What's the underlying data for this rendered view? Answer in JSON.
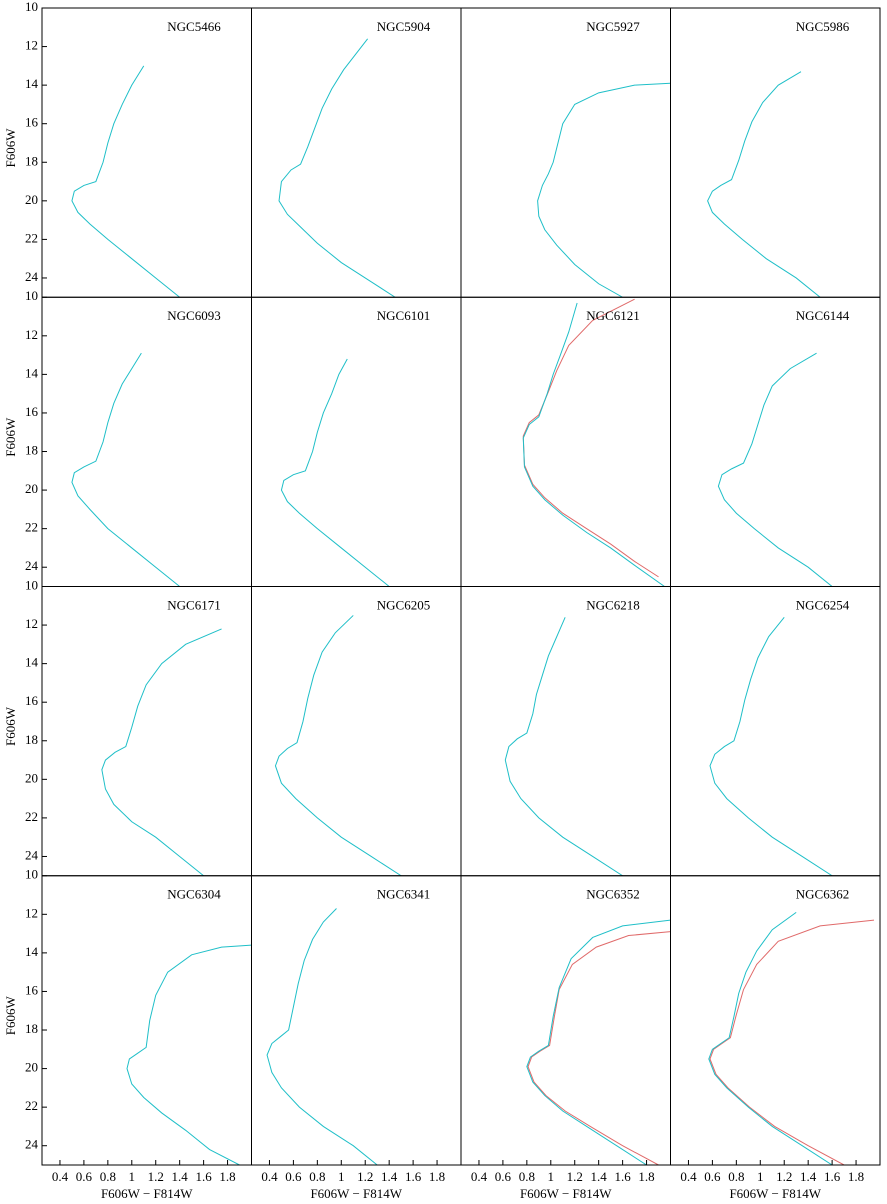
{
  "chart_data": [
    {
      "type": "line",
      "title": "NGC5466",
      "ylabel": "F606W",
      "xlim": [
        0.25,
        2.0
      ],
      "ylim": [
        25,
        10
      ],
      "yticks": [
        10,
        12,
        14,
        16,
        18,
        20,
        22,
        24
      ],
      "series": [
        {
          "color": "#1fbfc8",
          "x": [
            1.4,
            1.2,
            1.0,
            0.8,
            0.65,
            0.55,
            0.5,
            0.52,
            0.6,
            0.7,
            0.76,
            0.8,
            0.85,
            0.92,
            1.0,
            1.1
          ],
          "values": [
            25,
            24,
            23,
            22,
            21.2,
            20.6,
            20,
            19.5,
            19.2,
            19.0,
            18,
            17,
            16,
            15,
            14,
            13
          ]
        }
      ]
    },
    {
      "type": "line",
      "title": "NGC5904",
      "xlim": [
        0.25,
        2.0
      ],
      "ylim": [
        25,
        10
      ],
      "series": [
        {
          "color": "#1fbfc8",
          "x": [
            1.45,
            1.25,
            1.0,
            0.8,
            0.65,
            0.55,
            0.48,
            0.5,
            0.58,
            0.66,
            0.72,
            0.78,
            0.84,
            0.92,
            1.02,
            1.22
          ],
          "values": [
            25,
            24.2,
            23.2,
            22.2,
            21.3,
            20.7,
            20.0,
            19.0,
            18.4,
            18.1,
            17.2,
            16.2,
            15.2,
            14.2,
            13.2,
            11.6
          ]
        }
      ]
    },
    {
      "type": "line",
      "title": "NGC5927",
      "xlim": [
        0.25,
        2.0
      ],
      "ylim": [
        25,
        10
      ],
      "series": [
        {
          "color": "#1fbfc8",
          "x": [
            1.6,
            1.4,
            1.2,
            1.05,
            0.95,
            0.9,
            0.89,
            0.93,
            0.98,
            1.02,
            1.06,
            1.1,
            1.2,
            1.4,
            1.7,
            2.0
          ],
          "values": [
            25,
            24.3,
            23.3,
            22.3,
            21.5,
            20.8,
            20.0,
            19.2,
            18.6,
            18.0,
            17.0,
            16.0,
            15.0,
            14.4,
            14.0,
            13.9
          ]
        }
      ]
    },
    {
      "type": "line",
      "title": "NGC5986",
      "xlim": [
        0.25,
        2.0
      ],
      "ylim": [
        25,
        10
      ],
      "series": [
        {
          "color": "#1fbfc8",
          "x": [
            1.5,
            1.3,
            1.05,
            0.85,
            0.7,
            0.6,
            0.56,
            0.6,
            0.67,
            0.76,
            0.82,
            0.87,
            0.93,
            1.02,
            1.15,
            1.34
          ],
          "values": [
            25,
            24,
            23,
            22,
            21.2,
            20.6,
            20,
            19.5,
            19.2,
            18.9,
            17.9,
            16.9,
            15.9,
            14.9,
            14,
            13.3
          ]
        }
      ]
    },
    {
      "type": "line",
      "title": "NGC6093",
      "ylabel": "F606W",
      "xlim": [
        0.25,
        2.0
      ],
      "ylim": [
        25,
        10
      ],
      "yticks": [
        10,
        12,
        14,
        16,
        18,
        20,
        22,
        24
      ],
      "series": [
        {
          "color": "#1fbfc8",
          "x": [
            1.4,
            1.2,
            1.0,
            0.8,
            0.65,
            0.55,
            0.5,
            0.52,
            0.6,
            0.7,
            0.76,
            0.8,
            0.85,
            0.92,
            1.0,
            1.08
          ],
          "values": [
            25,
            24,
            23,
            22,
            21,
            20.3,
            19.6,
            19.1,
            18.8,
            18.5,
            17.5,
            16.5,
            15.5,
            14.5,
            13.7,
            12.9
          ]
        }
      ]
    },
    {
      "type": "line",
      "title": "NGC6101",
      "xlim": [
        0.25,
        2.0
      ],
      "ylim": [
        25,
        10
      ],
      "series": [
        {
          "color": "#1fbfc8",
          "x": [
            1.4,
            1.2,
            1.0,
            0.8,
            0.65,
            0.55,
            0.5,
            0.52,
            0.6,
            0.7,
            0.76,
            0.8,
            0.85,
            0.92,
            0.98,
            1.05
          ],
          "values": [
            25,
            24,
            23,
            22,
            21.2,
            20.6,
            20,
            19.5,
            19.2,
            19.0,
            18,
            17,
            16,
            15,
            14,
            13.2
          ]
        }
      ]
    },
    {
      "type": "line",
      "title": "NGC6121",
      "xlim": [
        0.25,
        2.0
      ],
      "ylim": [
        25,
        10
      ],
      "series": [
        {
          "color": "#e06a6a",
          "x": [
            1.9,
            1.7,
            1.5,
            1.3,
            1.1,
            0.95,
            0.85,
            0.78,
            0.77,
            0.82,
            0.9,
            0.98,
            1.05,
            1.15,
            1.35,
            1.7
          ],
          "values": [
            24.5,
            23.7,
            22.8,
            22.0,
            21.2,
            20.4,
            19.7,
            18.7,
            17.2,
            16.5,
            16.1,
            14.9,
            13.8,
            12.5,
            11.2,
            10.1
          ]
        },
        {
          "color": "#1fbfc8",
          "x": [
            1.95,
            1.7,
            1.5,
            1.3,
            1.1,
            0.95,
            0.85,
            0.78,
            0.77,
            0.82,
            0.9,
            0.97,
            1.02,
            1.08,
            1.15,
            1.22
          ],
          "values": [
            25,
            23.9,
            23,
            22.2,
            21.3,
            20.5,
            19.8,
            18.8,
            17.3,
            16.6,
            16.2,
            15,
            14,
            13,
            11.8,
            10.3
          ]
        }
      ]
    },
    {
      "type": "line",
      "title": "NGC6144",
      "xlim": [
        0.25,
        2.0
      ],
      "ylim": [
        25,
        10
      ],
      "series": [
        {
          "color": "#1fbfc8",
          "x": [
            1.6,
            1.4,
            1.15,
            0.95,
            0.8,
            0.7,
            0.65,
            0.68,
            0.76,
            0.86,
            0.93,
            0.98,
            1.03,
            1.1,
            1.25,
            1.47
          ],
          "values": [
            25,
            24,
            23,
            22,
            21.2,
            20.5,
            19.8,
            19.2,
            18.9,
            18.6,
            17.6,
            16.6,
            15.6,
            14.6,
            13.7,
            12.9
          ]
        }
      ]
    },
    {
      "type": "line",
      "title": "NGC6171",
      "ylabel": "F606W",
      "xlim": [
        0.25,
        2.0
      ],
      "ylim": [
        25,
        10
      ],
      "yticks": [
        10,
        12,
        14,
        16,
        18,
        20,
        22,
        24
      ],
      "series": [
        {
          "color": "#1fbfc8",
          "x": [
            1.6,
            1.4,
            1.2,
            1.0,
            0.85,
            0.78,
            0.75,
            0.78,
            0.86,
            0.95,
            1.0,
            1.05,
            1.12,
            1.25,
            1.45,
            1.75
          ],
          "values": [
            25,
            24,
            23,
            22.2,
            21.3,
            20.5,
            19.5,
            19.0,
            18.6,
            18.3,
            17.3,
            16.2,
            15.1,
            14,
            13,
            12.2
          ]
        }
      ]
    },
    {
      "type": "line",
      "title": "NGC6205",
      "xlim": [
        0.25,
        2.0
      ],
      "ylim": [
        25,
        10
      ],
      "series": [
        {
          "color": "#1fbfc8",
          "x": [
            1.5,
            1.25,
            1.0,
            0.8,
            0.62,
            0.5,
            0.45,
            0.48,
            0.55,
            0.63,
            0.68,
            0.72,
            0.77,
            0.84,
            0.95,
            1.1
          ],
          "values": [
            25,
            24,
            23,
            22,
            21,
            20.2,
            19.3,
            18.8,
            18.4,
            18.1,
            17,
            15.8,
            14.6,
            13.4,
            12.4,
            11.5
          ]
        }
      ]
    },
    {
      "type": "line",
      "title": "NGC6218",
      "xlim": [
        0.25,
        2.0
      ],
      "ylim": [
        25,
        10
      ],
      "series": [
        {
          "color": "#1fbfc8",
          "x": [
            1.6,
            1.35,
            1.1,
            0.9,
            0.75,
            0.66,
            0.62,
            0.65,
            0.72,
            0.8,
            0.85,
            0.88,
            0.93,
            0.98,
            1.05,
            1.12
          ],
          "values": [
            25,
            24,
            23,
            22,
            21,
            20.1,
            19.0,
            18.3,
            17.9,
            17.6,
            16.6,
            15.6,
            14.6,
            13.6,
            12.6,
            11.6
          ]
        }
      ]
    },
    {
      "type": "line",
      "title": "NGC6254",
      "xlim": [
        0.25,
        2.0
      ],
      "ylim": [
        25,
        10
      ],
      "series": [
        {
          "color": "#1fbfc8",
          "x": [
            1.6,
            1.35,
            1.1,
            0.9,
            0.72,
            0.62,
            0.58,
            0.62,
            0.7,
            0.78,
            0.83,
            0.87,
            0.92,
            0.98,
            1.07,
            1.2
          ],
          "values": [
            25,
            24,
            23,
            22,
            21,
            20.2,
            19.3,
            18.7,
            18.3,
            18.0,
            17.0,
            15.9,
            14.8,
            13.7,
            12.6,
            11.6
          ]
        }
      ]
    },
    {
      "type": "line",
      "title": "NGC6304",
      "ylabel": "F606W",
      "xlabel": "F606W − F814W",
      "xlim": [
        0.25,
        2.0
      ],
      "ylim": [
        25,
        10
      ],
      "yticks": [
        10,
        12,
        14,
        16,
        18,
        20,
        22,
        24
      ],
      "xticks": [
        0.4,
        0.6,
        0.8,
        1.0,
        1.2,
        1.4,
        1.6,
        1.8
      ],
      "series": [
        {
          "color": "#1fbfc8",
          "x": [
            1.9,
            1.65,
            1.45,
            1.25,
            1.1,
            1.0,
            0.96,
            0.98,
            1.05,
            1.12,
            1.15,
            1.2,
            1.3,
            1.5,
            1.75,
            2.0
          ],
          "values": [
            25,
            24.2,
            23.2,
            22.3,
            21.5,
            20.8,
            20.0,
            19.5,
            19.2,
            18.9,
            17.5,
            16.2,
            15.0,
            14.1,
            13.7,
            13.6
          ]
        }
      ]
    },
    {
      "type": "line",
      "title": "NGC6341",
      "xlabel": "F606W − F814W",
      "xlim": [
        0.25,
        2.0
      ],
      "ylim": [
        25,
        10
      ],
      "xticks": [
        0.4,
        0.6,
        0.8,
        1.0,
        1.2,
        1.4,
        1.6,
        1.8
      ],
      "series": [
        {
          "color": "#1fbfc8",
          "x": [
            1.3,
            1.1,
            0.85,
            0.65,
            0.5,
            0.42,
            0.38,
            0.42,
            0.5,
            0.56,
            0.6,
            0.64,
            0.69,
            0.76,
            0.85,
            0.96
          ],
          "values": [
            25,
            24,
            23,
            22,
            21,
            20.2,
            19.3,
            18.7,
            18.3,
            18.0,
            16.8,
            15.6,
            14.4,
            13.3,
            12.4,
            11.7
          ]
        }
      ]
    },
    {
      "type": "line",
      "title": "NGC6352",
      "xlabel": "F606W − F814W",
      "xlim": [
        0.25,
        2.0
      ],
      "ylim": [
        25,
        10
      ],
      "xticks": [
        0.4,
        0.6,
        0.8,
        1.0,
        1.2,
        1.4,
        1.6,
        1.8
      ],
      "series": [
        {
          "color": "#e06a6a",
          "x": [
            1.9,
            1.6,
            1.33,
            1.12,
            0.96,
            0.86,
            0.81,
            0.84,
            0.91,
            0.99,
            1.03,
            1.07,
            1.18,
            1.38,
            1.65,
            2.0
          ],
          "values": [
            25,
            24,
            23,
            22.2,
            21.4,
            20.7,
            19.9,
            19.4,
            19.1,
            18.8,
            17.3,
            15.9,
            14.6,
            13.7,
            13.1,
            12.9
          ]
        },
        {
          "color": "#1fbfc8",
          "x": [
            1.8,
            1.55,
            1.3,
            1.1,
            0.95,
            0.85,
            0.8,
            0.83,
            0.9,
            0.98,
            1.02,
            1.07,
            1.17,
            1.35,
            1.6,
            2.0
          ],
          "values": [
            25,
            24,
            23,
            22.2,
            21.4,
            20.7,
            19.9,
            19.4,
            19.1,
            18.8,
            17.3,
            15.8,
            14.3,
            13.2,
            12.6,
            12.3
          ]
        }
      ]
    },
    {
      "type": "line",
      "title": "NGC6362",
      "xlabel": "F606W − F814W",
      "xlim": [
        0.25,
        2.0
      ],
      "ylim": [
        25,
        10
      ],
      "xticks": [
        0.4,
        0.6,
        0.8,
        1.0,
        1.2,
        1.4,
        1.6,
        1.8
      ],
      "series": [
        {
          "color": "#e06a6a",
          "x": [
            1.7,
            1.4,
            1.12,
            0.91,
            0.73,
            0.63,
            0.58,
            0.61,
            0.68,
            0.75,
            0.8,
            0.86,
            0.97,
            1.15,
            1.5,
            1.95
          ],
          "values": [
            25,
            24,
            23,
            22,
            21,
            20.3,
            19.5,
            19.0,
            18.7,
            18.4,
            17.2,
            15.9,
            14.6,
            13.4,
            12.6,
            12.3
          ]
        },
        {
          "color": "#1fbfc8",
          "x": [
            1.6,
            1.35,
            1.1,
            0.9,
            0.72,
            0.62,
            0.57,
            0.6,
            0.67,
            0.74,
            0.78,
            0.82,
            0.88,
            0.97,
            1.1,
            1.3
          ],
          "values": [
            25,
            24,
            23,
            22,
            21,
            20.3,
            19.5,
            19.0,
            18.7,
            18.4,
            17.3,
            16.1,
            15,
            13.9,
            12.8,
            11.9
          ]
        }
      ]
    }
  ]
}
